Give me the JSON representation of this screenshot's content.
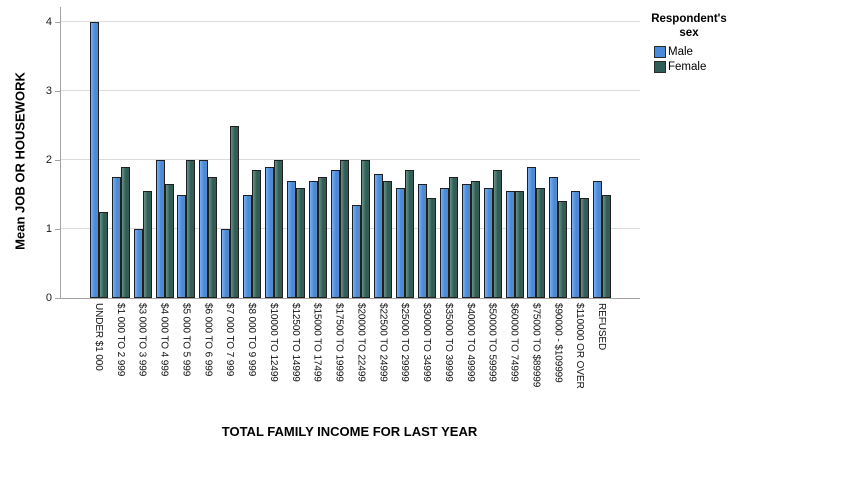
{
  "chart_data": {
    "type": "bar",
    "title": "",
    "xlabel": "TOTAL FAMILY INCOME FOR LAST YEAR",
    "ylabel": "Mean JOB OR HOUSEWORK",
    "legend_title_lines": [
      "Respondent's",
      "sex"
    ],
    "legend_position": "top-right",
    "grid": true,
    "ylim": [
      0,
      4.22
    ],
    "yticks": [
      0,
      1,
      2,
      3,
      4
    ],
    "categories": [
      "UNDER $1 000",
      "$1 000 TO 2 999",
      "$3 000 TO 3 999",
      "$4 000 TO 4 999",
      "$5 000 TO 5 999",
      "$6 000 TO 6 999",
      "$7 000 TO 7 999",
      "$8 000 TO 9 999",
      "$10000 TO 12499",
      "$12500 TO 14999",
      "$15000 TO 17499",
      "$17500 TO 19999",
      "$20000 TO 22499",
      "$22500 TO 24999",
      "$25000 TO 29999",
      "$30000 TO 34999",
      "$35000 TO 39999",
      "$40000 TO 49999",
      "$50000 TO 59999",
      "$60000 TO 74999",
      "$75000 TO $89999",
      "$90000 - $109999",
      "$110000 OR OVER",
      "REFUSED"
    ],
    "series": [
      {
        "name": "Male",
        "color": "#4a8bd9",
        "values": [
          4.0,
          1.75,
          1.0,
          2.0,
          1.5,
          2.0,
          1.0,
          1.5,
          1.9,
          1.7,
          1.7,
          1.85,
          1.35,
          1.8,
          1.6,
          1.65,
          1.6,
          1.65,
          1.6,
          1.55,
          1.9,
          1.75,
          1.55,
          1.7
        ]
      },
      {
        "name": "Female",
        "color": "#2e5e55",
        "values": [
          1.25,
          1.9,
          1.55,
          1.65,
          2.0,
          1.75,
          2.5,
          1.85,
          2.0,
          1.6,
          1.75,
          2.0,
          2.0,
          1.7,
          1.85,
          1.45,
          1.75,
          1.7,
          1.85,
          1.55,
          1.6,
          1.4,
          1.45,
          1.5
        ]
      }
    ],
    "colors": {
      "male": "#4a8bd9",
      "female": "#2e5e55",
      "gridline": "#dcdcdc",
      "axis_line": "#a3a3a3",
      "bar_border": "#1f1f1f"
    }
  }
}
